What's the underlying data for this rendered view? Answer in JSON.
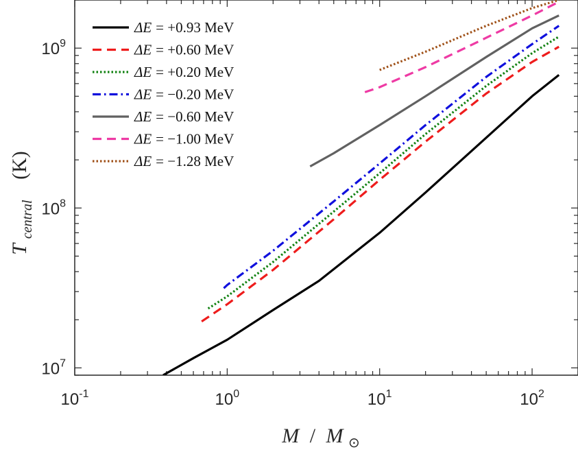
{
  "chart_data": {
    "type": "line",
    "x_scale": "log",
    "y_scale": "log",
    "xlim": [
      0.1,
      200
    ],
    "ylim": [
      9000000.0,
      2000000000.0
    ],
    "x_ticks": [
      {
        "value": 0.1,
        "base": "10",
        "exp": "-1"
      },
      {
        "value": 1,
        "base": "10",
        "exp": "0"
      },
      {
        "value": 10,
        "base": "10",
        "exp": "1"
      },
      {
        "value": 100,
        "base": "10",
        "exp": "2"
      }
    ],
    "y_ticks": [
      {
        "value": 10000000.0,
        "base": "10",
        "exp": "7"
      },
      {
        "value": 100000000.0,
        "base": "10",
        "exp": "8"
      },
      {
        "value": 1000000000.0,
        "base": "10",
        "exp": "9"
      }
    ],
    "xlabel": "M / M⊙",
    "ylabel": "T_central (K)",
    "xlabel_parts": {
      "m": "M",
      "slash": "/",
      "msun": "M",
      "sub": "⊙"
    },
    "ylabel_parts": {
      "t": "T",
      "sub": "central",
      "unit": "(K)"
    },
    "series": [
      {
        "name": "ΔE = +0.93 MeV",
        "sym": "ΔE",
        "val": "= +0.93 MeV",
        "color": "#000000",
        "dash": "solid",
        "x": [
          0.38,
          0.6,
          1,
          2,
          4,
          10,
          20,
          50,
          100,
          150
        ],
        "y": [
          9000000.0,
          11500000.0,
          15000000.0,
          23000000.0,
          35000000.0,
          70000000.0,
          125000000.0,
          275000000.0,
          500000000.0,
          680000000.0
        ]
      },
      {
        "name": "ΔE = +0.60 MeV",
        "sym": "ΔE",
        "val": "= +0.60 MeV",
        "color": "#ee1c1c",
        "dash": "dash",
        "x": [
          0.68,
          1,
          2,
          5,
          10,
          20,
          50,
          100,
          150
        ],
        "y": [
          19500000.0,
          25000000.0,
          41000000.0,
          85000000.0,
          150000000.0,
          260000000.0,
          520000000.0,
          820000000.0,
          1020000000.0
        ]
      },
      {
        "name": "ΔE = +0.20 MeV",
        "sym": "ΔE",
        "val": "= +0.20 MeV",
        "color": "#128212",
        "dash": "dot",
        "x": [
          0.75,
          1,
          2,
          5,
          10,
          20,
          50,
          100,
          150
        ],
        "y": [
          23500000.0,
          28000000.0,
          46000000.0,
          95000000.0,
          165000000.0,
          290000000.0,
          580000000.0,
          930000000.0,
          1180000000.0
        ]
      },
      {
        "name": "ΔE = −0.20 MeV",
        "sym": "ΔE",
        "val": "= −0.20 MeV",
        "color": "#1010dd",
        "dash": "dashdot",
        "x": [
          0.95,
          1,
          2,
          5,
          10,
          20,
          50,
          100,
          150
        ],
        "y": [
          31500000.0,
          33000000.0,
          54000000.0,
          110000000.0,
          190000000.0,
          330000000.0,
          660000000.0,
          1060000000.0,
          1380000000.0
        ]
      },
      {
        "name": "ΔE = −0.60 MeV",
        "sym": "ΔE",
        "val": "= −0.60 MeV",
        "color": "#616161",
        "dash": "solid",
        "x": [
          3.5,
          5,
          10,
          20,
          50,
          100,
          150
        ],
        "y": [
          182000000.0,
          220000000.0,
          330000000.0,
          500000000.0,
          880000000.0,
          1330000000.0,
          1600000000.0
        ]
      },
      {
        "name": "ΔE = −1.00 MeV",
        "sym": "ΔE",
        "val": "= −1.00 MeV",
        "color": "#ee3aa4",
        "dash": "dash",
        "x": [
          8,
          10,
          20,
          50,
          100,
          150
        ],
        "y": [
          530000000.0,
          570000000.0,
          760000000.0,
          1160000000.0,
          1600000000.0,
          1950000000.0
        ]
      },
      {
        "name": "ΔE = −1.28 MeV",
        "sym": "ΔE",
        "val": "= −1.28 MeV",
        "color": "#a0521a",
        "dash": "dot",
        "x": [
          10,
          20,
          50,
          100,
          150
        ],
        "y": [
          730000000.0,
          950000000.0,
          1380000000.0,
          1780000000.0,
          2000000000.0
        ]
      }
    ],
    "legend_position": "top-left"
  }
}
